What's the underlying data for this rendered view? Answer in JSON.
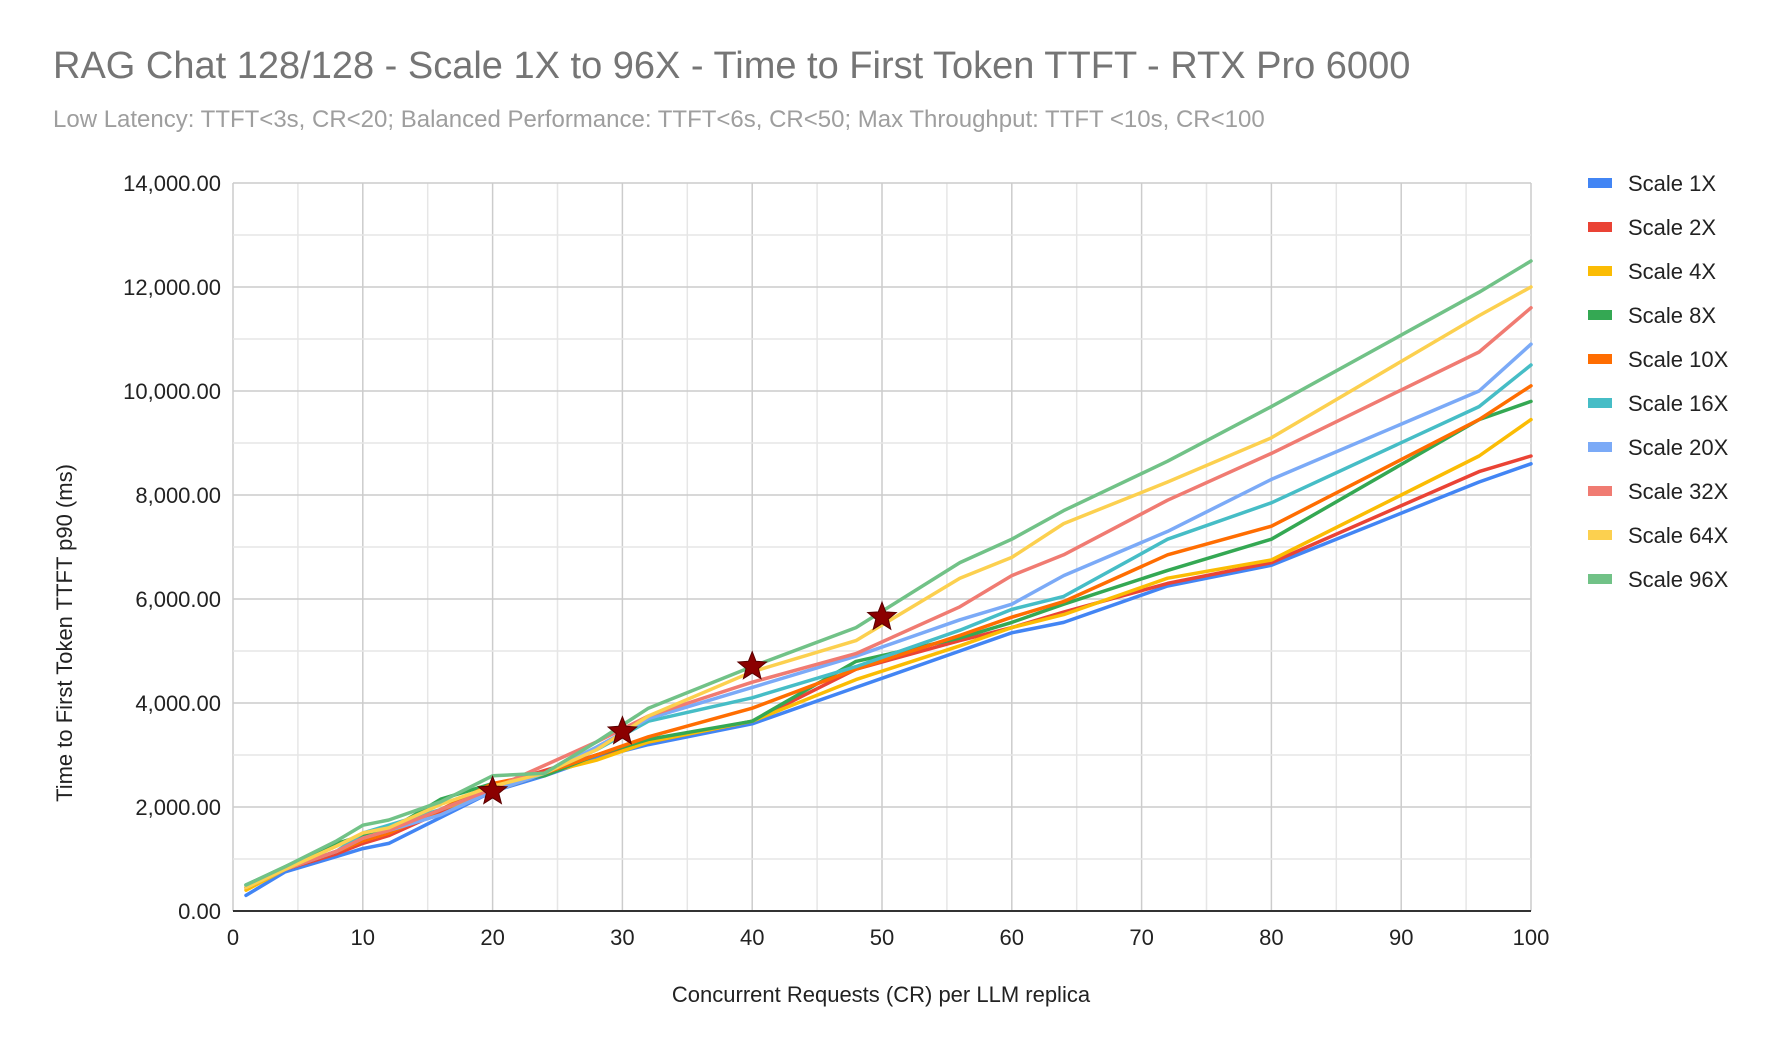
{
  "chart_data": {
    "type": "line",
    "title": "RAG Chat 128/128 - Scale 1X to 96X - Time to First Token TTFT - RTX Pro 6000",
    "subtitle": "Low Latency: TTFT<3s, CR<20; Balanced Performance: TTFT<6s, CR<50; Max Throughput: TTFT <10s, CR<100",
    "xlabel": "Concurrent Requests (CR) per LLM replica",
    "ylabel": "Time to First Token TTFT p90 (ms)",
    "xlim": [
      0,
      100
    ],
    "ylim": [
      0,
      14000
    ],
    "xticks": [
      0,
      10,
      20,
      30,
      40,
      50,
      60,
      70,
      80,
      90,
      100
    ],
    "yticks": [
      0,
      2000,
      4000,
      6000,
      8000,
      10000,
      12000,
      14000
    ],
    "ytick_labels": [
      "0.00",
      "2,000.00",
      "4,000.00",
      "6,000.00",
      "8,000.00",
      "10,000.00",
      "12,000.00",
      "14,000.00"
    ],
    "grid": true,
    "legend_position": "right",
    "series": [
      {
        "name": "Scale 1X",
        "color": "#4285f4",
        "x": [
          1,
          4,
          8,
          10,
          12,
          16,
          20,
          24,
          28,
          32,
          40,
          48,
          56,
          60,
          64,
          72,
          80,
          96,
          100
        ],
        "y": [
          300,
          750,
          1050,
          1200,
          1300,
          1800,
          2300,
          2600,
          2950,
          3200,
          3600,
          4300,
          5000,
          5350,
          5550,
          6250,
          6650,
          8250,
          8600
        ]
      },
      {
        "name": "Scale 2X",
        "color": "#ea4335",
        "x": [
          1,
          4,
          8,
          10,
          12,
          16,
          20,
          24,
          28,
          32,
          40,
          48,
          56,
          60,
          64,
          72,
          80,
          96,
          100
        ],
        "y": [
          450,
          800,
          1100,
          1300,
          1450,
          1900,
          2400,
          2700,
          3000,
          3250,
          3650,
          4650,
          5200,
          5450,
          5750,
          6300,
          6700,
          8450,
          8750
        ]
      },
      {
        "name": "Scale 4X",
        "color": "#fbbc04",
        "x": [
          1,
          4,
          8,
          10,
          12,
          16,
          20,
          24,
          28,
          32,
          40,
          48,
          56,
          60,
          64,
          72,
          80,
          96,
          100
        ],
        "y": [
          400,
          800,
          1150,
          1350,
          1500,
          1950,
          2300,
          2650,
          2900,
          3250,
          3650,
          4450,
          5100,
          5450,
          5700,
          6400,
          6750,
          8750,
          9450
        ]
      },
      {
        "name": "Scale 8X",
        "color": "#34a853",
        "x": [
          1,
          4,
          8,
          10,
          12,
          16,
          20,
          24,
          28,
          32,
          40,
          48,
          56,
          60,
          64,
          72,
          80,
          96,
          100
        ],
        "y": [
          500,
          850,
          1300,
          1450,
          1550,
          2150,
          2450,
          2600,
          3000,
          3300,
          3650,
          4800,
          5250,
          5550,
          5900,
          6550,
          7150,
          9450,
          9800
        ]
      },
      {
        "name": "Scale 10X",
        "color": "#ff6d01",
        "x": [
          1,
          4,
          8,
          10,
          12,
          16,
          20,
          24,
          28,
          32,
          40,
          48,
          56,
          60,
          64,
          72,
          80,
          96,
          100
        ],
        "y": [
          450,
          800,
          1150,
          1350,
          1500,
          1950,
          2450,
          2650,
          3000,
          3350,
          3900,
          4650,
          5300,
          5650,
          5950,
          6850,
          7400,
          9450,
          10100
        ]
      },
      {
        "name": "Scale 16X",
        "color": "#46bdc6",
        "x": [
          1,
          4,
          8,
          10,
          12,
          16,
          20,
          24,
          28,
          32,
          40,
          48,
          56,
          60,
          64,
          72,
          80,
          96,
          100
        ],
        "y": [
          500,
          800,
          1150,
          1500,
          1650,
          1950,
          2350,
          2650,
          3100,
          3650,
          4100,
          4700,
          5400,
          5800,
          6050,
          7150,
          7850,
          9700,
          10500
        ]
      },
      {
        "name": "Scale 20X",
        "color": "#7baaf7",
        "x": [
          1,
          4,
          8,
          10,
          12,
          16,
          20,
          24,
          28,
          32,
          40,
          48,
          56,
          60,
          64,
          72,
          80,
          96,
          100
        ],
        "y": [
          450,
          800,
          1150,
          1400,
          1550,
          1850,
          2300,
          2650,
          3150,
          3700,
          4300,
          4900,
          5600,
          5900,
          6450,
          7300,
          8300,
          10000,
          10900
        ]
      },
      {
        "name": "Scale 32X",
        "color": "#f07b72",
        "x": [
          1,
          4,
          8,
          10,
          12,
          16,
          20,
          24,
          28,
          32,
          40,
          48,
          56,
          60,
          64,
          72,
          80,
          96,
          100
        ],
        "y": [
          450,
          800,
          1150,
          1400,
          1550,
          1950,
          2350,
          2800,
          3250,
          3750,
          4400,
          4950,
          5850,
          6450,
          6850,
          7900,
          8800,
          10750,
          11600
        ]
      },
      {
        "name": "Scale 64X",
        "color": "#fcd04f",
        "x": [
          1,
          4,
          8,
          10,
          12,
          16,
          20,
          24,
          28,
          32,
          40,
          48,
          56,
          60,
          64,
          72,
          80,
          96,
          100
        ],
        "y": [
          450,
          800,
          1250,
          1500,
          1600,
          2050,
          2400,
          2650,
          3100,
          3750,
          4600,
          5200,
          6400,
          6800,
          7450,
          8250,
          9100,
          11450,
          12000
        ]
      },
      {
        "name": "Scale 96X",
        "color": "#71c287",
        "x": [
          1,
          4,
          8,
          10,
          12,
          16,
          20,
          24,
          28,
          32,
          40,
          48,
          56,
          60,
          64,
          72,
          80,
          96,
          100
        ],
        "y": [
          500,
          850,
          1350,
          1650,
          1750,
          2100,
          2600,
          2650,
          3250,
          3900,
          4700,
          5450,
          6700,
          7150,
          7700,
          8650,
          9700,
          11900,
          12500
        ]
      }
    ],
    "markers": {
      "symbol": "star",
      "color": "#8b0000",
      "points": [
        {
          "x": 20,
          "y": 2300
        },
        {
          "x": 30,
          "y": 3450
        },
        {
          "x": 40,
          "y": 4700
        },
        {
          "x": 50,
          "y": 5650
        }
      ]
    }
  }
}
